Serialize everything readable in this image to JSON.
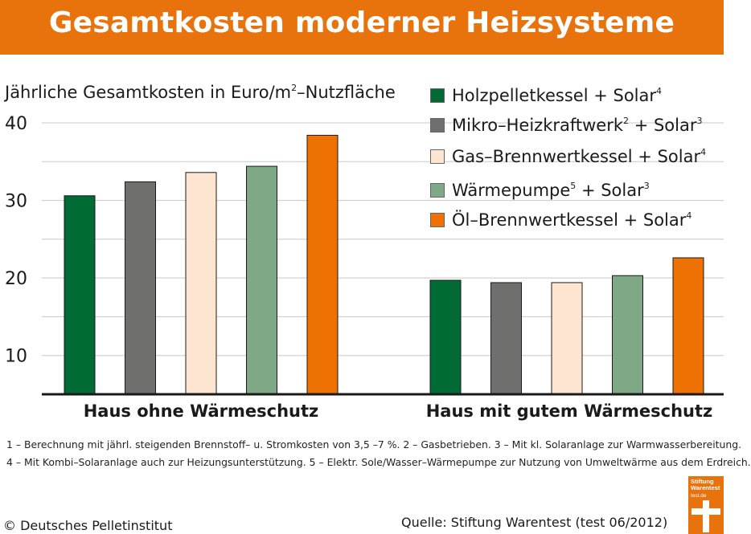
{
  "header": {
    "title": "Gesamtkosten moderner Heizsysteme"
  },
  "chart_data": {
    "type": "bar",
    "ylabel_pre": "Jährliche Gesamtkosten in Euro/m",
    "ylabel_sup": "2",
    "ylabel_post": "–Nutzfläche",
    "ylim": [
      5,
      40
    ],
    "yticks": [
      "10",
      "20",
      "30",
      "40"
    ],
    "grid": true,
    "legend_position": "top-right",
    "categories": [
      "Haus ohne Wärmeschutz",
      "Haus mit gutem Wärmeschutz"
    ],
    "series": [
      {
        "name": "Holzpelletkessel + Solar",
        "sup": "4",
        "color": "#006b35",
        "values": [
          30.6,
          19.7
        ]
      },
      {
        "name": "Mikro–Heizkraftwerk",
        "sup": "2",
        "name_post": " + Solar",
        "sup_post": "3",
        "color": "#6f6f6e",
        "values": [
          32.4,
          19.4
        ]
      },
      {
        "name": "Gas–Brennwertkessel + Solar",
        "sup": "4",
        "color": "#fde5d1",
        "values": [
          33.6,
          19.4
        ]
      },
      {
        "name": "Wärmepumpe",
        "sup": "5",
        "name_post": " + Solar",
        "sup_post": "3",
        "color": "#7fa986",
        "values": [
          34.4,
          20.3
        ]
      },
      {
        "name": "Öl–Brennwertkessel + Solar",
        "sup": "4",
        "color": "#ed7203",
        "values": [
          38.4,
          22.6
        ]
      }
    ]
  },
  "footnotes": [
    "1 – Berechnung mit jährl. steigenden Brennstoff– u. Stromkosten von 3,5 –7 %. 2 – Gasbetrieben. 3 – Mit kl. Solaranlage zur Warmwasserbereitung.",
    "4 – Mit Kombi–Solaranlage auch zur Heizungsunterstützung. 5 – Elektr. Sole/Wasser–Wärmepumpe zur Nutzung von Umweltwärme aus dem Erdreich."
  ],
  "copyright": "© Deutsches Pelletinstitut",
  "source": "Quelle: Stiftung Warentest (test 06/2012)",
  "logo": {
    "line1": "Stiftung",
    "line2": "Warentest",
    "url": "test.de"
  }
}
